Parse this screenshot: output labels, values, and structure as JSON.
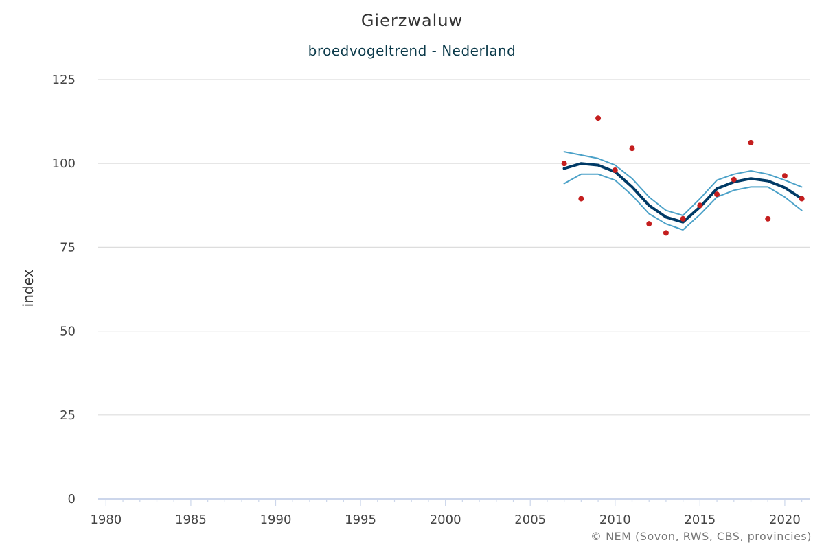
{
  "chart_data": {
    "type": "line",
    "title": "Gierzwaluw",
    "subtitle": "broedvogeltrend - Nederland",
    "xlabel": "",
    "ylabel": "index",
    "xlim": [
      1979.5,
      2021.5
    ],
    "ylim": [
      0,
      125
    ],
    "x_ticks": [
      1980,
      1985,
      1990,
      1995,
      2000,
      2005,
      2010,
      2015,
      2020
    ],
    "y_ticks": [
      0,
      25,
      50,
      75,
      100,
      125
    ],
    "grid": true,
    "legend": "none",
    "x": [
      2007,
      2008,
      2009,
      2010,
      2011,
      2012,
      2013,
      2014,
      2015,
      2016,
      2017,
      2018,
      2019,
      2020,
      2021
    ],
    "series": [
      {
        "kind": "trend",
        "color": "#003a66",
        "values": [
          98.5,
          100,
          99.5,
          97.5,
          93,
          87.5,
          84,
          82.5,
          87,
          92.5,
          94.5,
          95.5,
          94.8,
          92.8,
          89.5
        ]
      },
      {
        "kind": "upper-bound",
        "color": "#4ba1c8",
        "values": [
          103.5,
          102.5,
          101.5,
          99.5,
          95.5,
          90,
          86,
          84.5,
          89.5,
          95,
          96.8,
          97.8,
          96.8,
          95,
          93
        ]
      },
      {
        "kind": "lower-bound",
        "color": "#4ba1c8",
        "values": [
          94,
          96.8,
          96.8,
          95,
          90.5,
          85,
          82,
          80.2,
          84.8,
          90,
          92,
          93,
          93,
          90,
          86
        ]
      },
      {
        "kind": "observed-index",
        "color": "#c41e1e",
        "values": [
          100,
          89.5,
          113.5,
          98,
          104.5,
          82,
          79.3,
          83.5,
          87.5,
          90.8,
          95.2,
          106.2,
          83.5,
          96.3,
          89.5
        ]
      }
    ],
    "credits": "© NEM (Sovon, RWS, CBS, provincies)"
  }
}
